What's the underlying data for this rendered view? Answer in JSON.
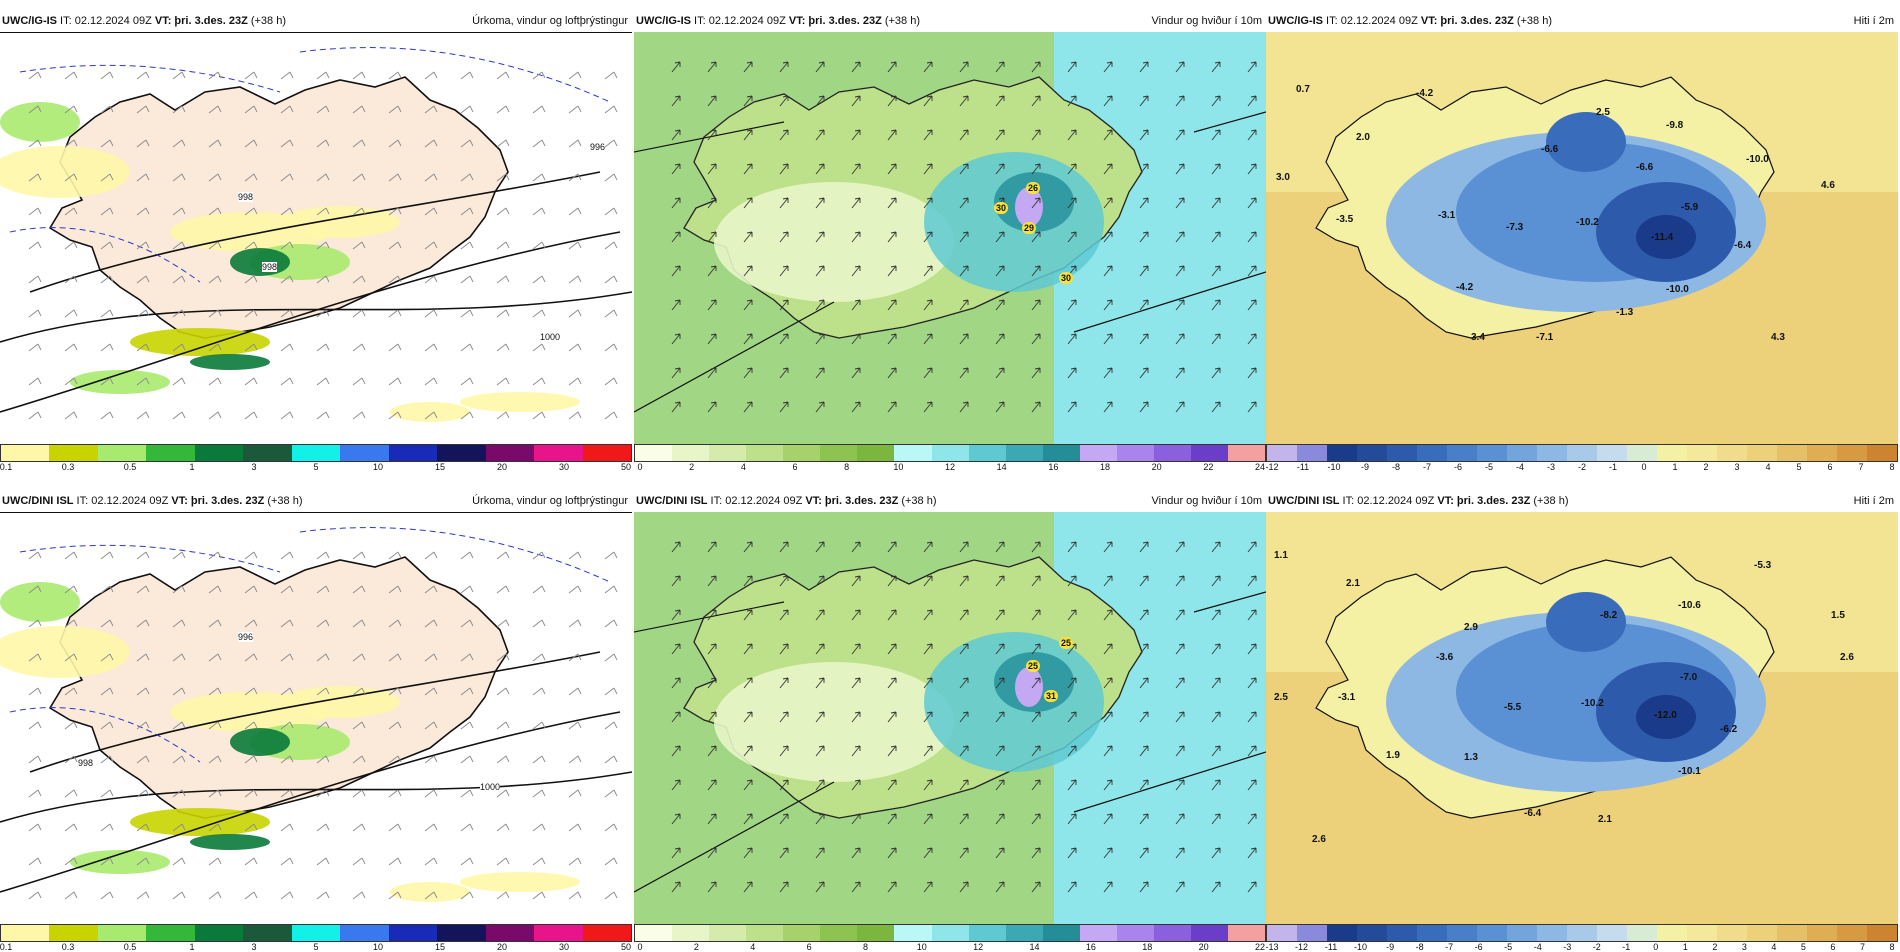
{
  "colors": {
    "accent": "#1a1a1a"
  },
  "panels": [
    {
      "model": "UWC/IG-IS",
      "it_label": "IT:",
      "it": "02.12.2024 09Z",
      "vt_label": "VT:",
      "vt": "þri. 3.des. 23Z",
      "lead": "(+38 h)",
      "title": "Úrkoma, vindur og loftþrýstingur",
      "type": "precip",
      "ticks": [
        "0.1",
        "0.3",
        "0.5",
        "1",
        "3",
        "5",
        "10",
        "15",
        "20",
        "30",
        "50"
      ],
      "isobars": [
        "998",
        "998",
        "996",
        "1000"
      ],
      "colors": [
        "#fff7a8",
        "#c8d400",
        "#a8ea6e",
        "#34b83a",
        "#0a7a3a",
        "#1a5a3a",
        "#13f0e8",
        "#3a78f0",
        "#1a2ab8",
        "#14145a",
        "#7a0a6a",
        "#e8148a",
        "#f01818"
      ]
    },
    {
      "model": "UWC/IG-IS",
      "it_label": "IT:",
      "it": "02.12.2024 09Z",
      "vt_label": "VT:",
      "vt": "þri. 3.des. 23Z",
      "lead": "(+38 h)",
      "title": "Vindur og hviður í 10m",
      "type": "wind",
      "ticks": [
        "0",
        "2",
        "4",
        "6",
        "8",
        "10",
        "12",
        "14",
        "16",
        "18",
        "20",
        "22",
        "24"
      ],
      "gusts": [
        "26",
        "30",
        "29",
        "30"
      ],
      "colors": [
        "#fafde8",
        "#e8f5c8",
        "#d4ebac",
        "#bde08a",
        "#a6d26c",
        "#8dc451",
        "#7bb63f",
        "#baf7f7",
        "#8ee6ea",
        "#5fc9d2",
        "#3aa9b4",
        "#238d98",
        "#c4a8f4",
        "#a884ec",
        "#8a60dc",
        "#6a3ec8",
        "#f4a0a0"
      ]
    },
    {
      "model": "UWC/IG-IS",
      "it_label": "IT:",
      "it": "02.12.2024 09Z",
      "vt_label": "VT:",
      "vt": "þri. 3.des. 23Z",
      "lead": "(+38 h)",
      "title": "Hiti í 2m",
      "type": "temp",
      "ticks": [
        "-12",
        "-11",
        "-10",
        "-9",
        "-8",
        "-7",
        "-6",
        "-5",
        "-4",
        "-3",
        "-2",
        "-1",
        "0",
        "1",
        "2",
        "3",
        "4",
        "5",
        "6",
        "7",
        "8"
      ],
      "labels": [
        "0.7",
        "-4.2",
        "2.5",
        "-9.8",
        "2.0",
        "-6.6",
        "-10.0",
        "3.0",
        "-6.6",
        "4.6",
        "-5.9",
        "-3.5",
        "-3.1",
        "-7.3",
        "-10.2",
        "-11.4",
        "-6.4",
        "-4.2",
        "-10.0",
        "-1.3",
        "3.4",
        "-7.1",
        "4.3"
      ],
      "colors": [
        "#c4b4ec",
        "#8a8adc",
        "#1a3a8a",
        "#244a9a",
        "#2e5aac",
        "#3a6cbc",
        "#4a7ec8",
        "#5a90d4",
        "#74a4dc",
        "#8eb8e4",
        "#a8cae8",
        "#c4dcec",
        "#d8ecd4",
        "#f4f0a4",
        "#f4e89a",
        "#f0dc8a",
        "#ecd07a",
        "#e6c066",
        "#e0ae52",
        "#d89a40",
        "#cc8430"
      ]
    },
    {
      "model": "UWC/DINI ISL",
      "it_label": "IT:",
      "it": "02.12.2024 09Z",
      "vt_label": "VT:",
      "vt": "þri. 3.des. 23Z",
      "lead": "(+38 h)",
      "title": "Úrkoma, vindur og loftþrýstingur",
      "type": "precip",
      "ticks": [
        "0.1",
        "0.3",
        "0.5",
        "1",
        "3",
        "5",
        "10",
        "15",
        "20",
        "30",
        "50"
      ],
      "isobars": [
        "996",
        "998",
        "1000"
      ],
      "colors": [
        "#fff7a8",
        "#c8d400",
        "#a8ea6e",
        "#34b83a",
        "#0a7a3a",
        "#1a5a3a",
        "#13f0e8",
        "#3a78f0",
        "#1a2ab8",
        "#14145a",
        "#7a0a6a",
        "#e8148a",
        "#f01818"
      ]
    },
    {
      "model": "UWC/DINI ISL",
      "it_label": "IT:",
      "it": "02.12.2024 09Z",
      "vt_label": "VT:",
      "vt": "þri. 3.des. 23Z",
      "lead": "(+38 h)",
      "title": "Vindur og hviður í 10m",
      "type": "wind",
      "ticks": [
        "0",
        "2",
        "4",
        "6",
        "8",
        "10",
        "12",
        "14",
        "16",
        "18",
        "20",
        "22"
      ],
      "gusts": [
        "25",
        "25",
        "31"
      ],
      "colors": [
        "#fafde8",
        "#e8f5c8",
        "#d4ebac",
        "#bde08a",
        "#a6d26c",
        "#8dc451",
        "#7bb63f",
        "#baf7f7",
        "#8ee6ea",
        "#5fc9d2",
        "#3aa9b4",
        "#238d98",
        "#c4a8f4",
        "#a884ec",
        "#8a60dc",
        "#6a3ec8",
        "#f4a0a0"
      ]
    },
    {
      "model": "UWC/DINI ISL",
      "it_label": "IT:",
      "it": "02.12.2024 09Z",
      "vt_label": "VT:",
      "vt": "þri. 3.des. 23Z",
      "lead": "(+38 h)",
      "title": "Hiti í 2m",
      "type": "temp",
      "ticks": [
        "-13",
        "-12",
        "-11",
        "-10",
        "-9",
        "-8",
        "-7",
        "-6",
        "-5",
        "-4",
        "-3",
        "-2",
        "-1",
        "0",
        "1",
        "2",
        "3",
        "4",
        "5",
        "6",
        "7",
        "8"
      ],
      "labels": [
        "1.1",
        "-5.3",
        "2.1",
        "2.9",
        "-8.2",
        "-10.6",
        "1.5",
        "-3.6",
        "2.6",
        "-7.0",
        "2.5",
        "-3.1",
        "-5.5",
        "-10.2",
        "-12.0",
        "-6.2",
        "1.9",
        "1.3",
        "-10.1",
        "-6.4",
        "2.1",
        "2.6"
      ],
      "colors": [
        "#c4b4ec",
        "#8a8adc",
        "#1a3a8a",
        "#244a9a",
        "#2e5aac",
        "#3a6cbc",
        "#4a7ec8",
        "#5a90d4",
        "#74a4dc",
        "#8eb8e4",
        "#a8cae8",
        "#c4dcec",
        "#d8ecd4",
        "#f4f0a4",
        "#f4e89a",
        "#f0dc8a",
        "#ecd07a",
        "#e6c066",
        "#e0ae52",
        "#d89a40",
        "#cc8430"
      ]
    }
  ]
}
